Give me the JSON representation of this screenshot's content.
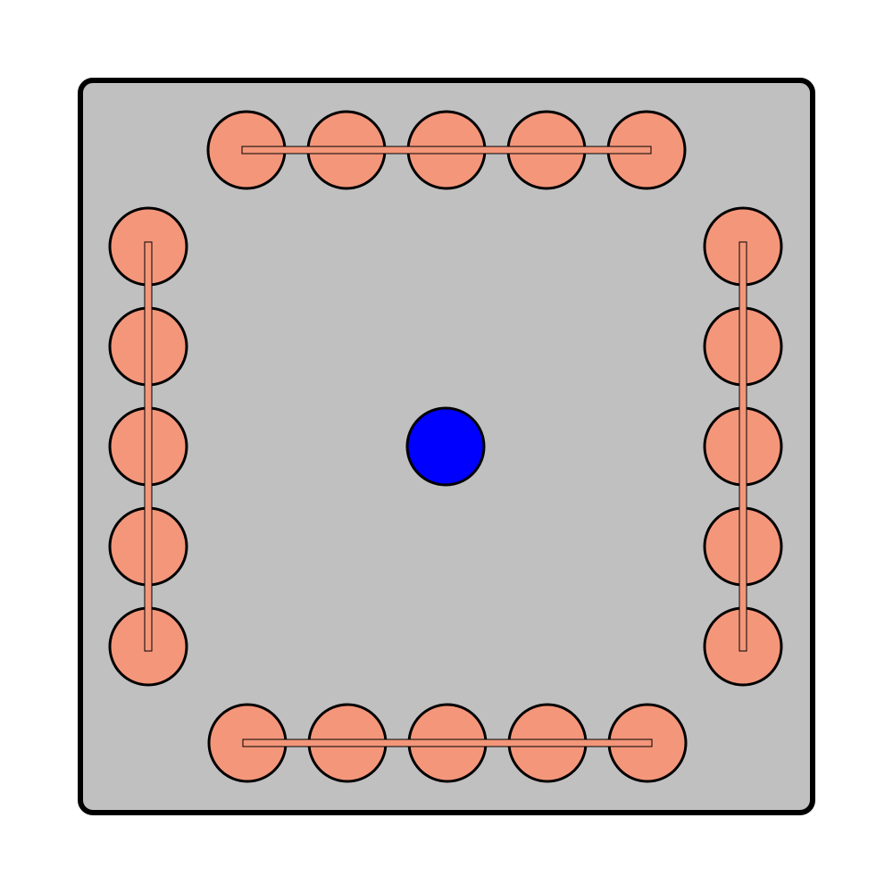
{
  "colors": {
    "background": "#ffffff",
    "board_fill": "#c0c0c0",
    "board_stroke": "#000000",
    "stone_fill": "#f4967a",
    "stone_stroke": "#000000",
    "center_piece_fill": "#0000ff",
    "center_piece_stroke": "#000000"
  },
  "groups": [
    {
      "name": "top-row",
      "orientation": "horizontal",
      "stone_count": 5
    },
    {
      "name": "left-column",
      "orientation": "vertical",
      "stone_count": 5
    },
    {
      "name": "right-column",
      "orientation": "vertical",
      "stone_count": 5
    },
    {
      "name": "bottom-row",
      "orientation": "horizontal",
      "stone_count": 5
    }
  ],
  "center_piece": {
    "name": "center-piece"
  }
}
